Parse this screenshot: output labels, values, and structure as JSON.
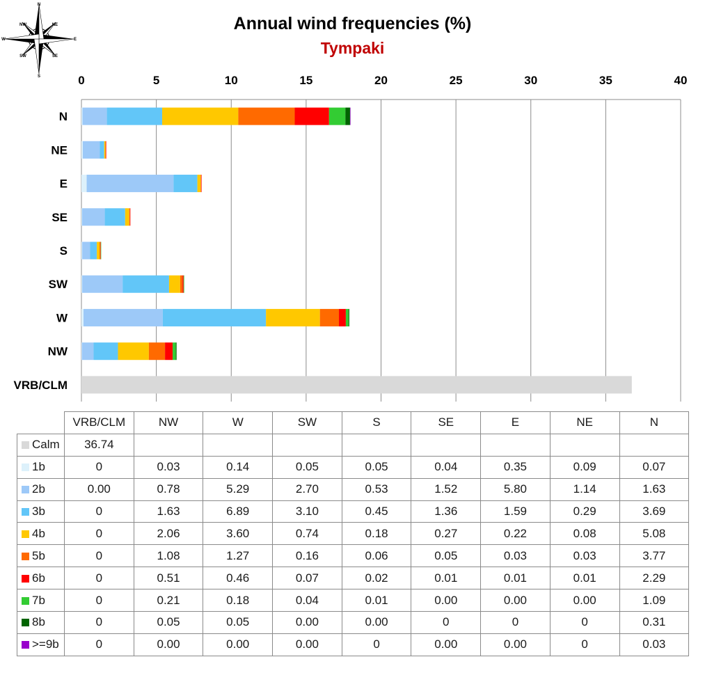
{
  "chart_data": {
    "type": "bar",
    "orientation": "horizontal",
    "stacked": true,
    "title": "Annual wind frequencies (%)",
    "subtitle": "Tympaki",
    "categories": [
      "N",
      "NE",
      "E",
      "SE",
      "S",
      "SW",
      "W",
      "NW",
      "VRB/CLM"
    ],
    "xlim": [
      0,
      40
    ],
    "x_ticks": [
      0,
      5,
      10,
      15,
      20,
      25,
      30,
      35,
      40
    ],
    "grid": "vertical",
    "legend": "table-below",
    "series": [
      {
        "name": "Calm",
        "color": "#d9d9d9",
        "values": [
          0,
          0,
          0,
          0,
          0,
          0,
          0,
          0,
          36.74
        ]
      },
      {
        "name": "1b",
        "color": "#ddf1fb",
        "values": [
          0.07,
          0.09,
          0.35,
          0.04,
          0.05,
          0.05,
          0.14,
          0.03,
          0
        ]
      },
      {
        "name": "2b",
        "color": "#9dc9f8",
        "values": [
          1.63,
          1.14,
          5.8,
          1.52,
          0.53,
          2.7,
          5.29,
          0.78,
          0
        ]
      },
      {
        "name": "3b",
        "color": "#62c6f8",
        "values": [
          3.69,
          0.29,
          1.59,
          1.36,
          0.45,
          3.1,
          6.89,
          1.63,
          0
        ]
      },
      {
        "name": "4b",
        "color": "#ffc800",
        "values": [
          5.08,
          0.08,
          0.22,
          0.27,
          0.18,
          0.74,
          3.6,
          2.06,
          0
        ]
      },
      {
        "name": "5b",
        "color": "#ff6a00",
        "values": [
          3.77,
          0.03,
          0.03,
          0.05,
          0.06,
          0.16,
          1.27,
          1.08,
          0
        ]
      },
      {
        "name": "6b",
        "color": "#ff0000",
        "values": [
          2.29,
          0.01,
          0.01,
          0.01,
          0.02,
          0.07,
          0.46,
          0.51,
          0
        ]
      },
      {
        "name": "7b",
        "color": "#33cc33",
        "values": [
          1.09,
          0.0,
          0.0,
          0.0,
          0.01,
          0.04,
          0.18,
          0.21,
          0
        ]
      },
      {
        "name": "8b",
        "color": "#006400",
        "values": [
          0.31,
          0,
          0,
          0.0,
          0.0,
          0.0,
          0.05,
          0.05,
          0
        ]
      },
      {
        "name": ">=9b",
        "color": "#9900cc",
        "values": [
          0.03,
          0,
          0.0,
          0.0,
          0,
          0.0,
          0.0,
          0.0,
          0
        ]
      }
    ]
  },
  "compass_labels": [
    "N",
    "NE",
    "E",
    "SE",
    "S",
    "SW",
    "W",
    "NW"
  ],
  "table": {
    "header": [
      "VRB/CLM",
      "NW",
      "W",
      "SW",
      "S",
      "SE",
      "E",
      "NE",
      "N"
    ],
    "rows": [
      {
        "label": "Calm",
        "color": "#d9d9d9",
        "cells": [
          "36.74",
          "",
          "",
          "",
          "",
          "",
          "",
          "",
          ""
        ]
      },
      {
        "label": "1b",
        "color": "#ddf1fb",
        "cells": [
          "0",
          "0.03",
          "0.14",
          "0.05",
          "0.05",
          "0.04",
          "0.35",
          "0.09",
          "0.07"
        ]
      },
      {
        "label": "2b",
        "color": "#9dc9f8",
        "cells": [
          "0.00",
          "0.78",
          "5.29",
          "2.70",
          "0.53",
          "1.52",
          "5.80",
          "1.14",
          "1.63"
        ]
      },
      {
        "label": "3b",
        "color": "#62c6f8",
        "cells": [
          "0",
          "1.63",
          "6.89",
          "3.10",
          "0.45",
          "1.36",
          "1.59",
          "0.29",
          "3.69"
        ]
      },
      {
        "label": "4b",
        "color": "#ffc800",
        "cells": [
          "0",
          "2.06",
          "3.60",
          "0.74",
          "0.18",
          "0.27",
          "0.22",
          "0.08",
          "5.08"
        ]
      },
      {
        "label": "5b",
        "color": "#ff6a00",
        "cells": [
          "0",
          "1.08",
          "1.27",
          "0.16",
          "0.06",
          "0.05",
          "0.03",
          "0.03",
          "3.77"
        ]
      },
      {
        "label": "6b",
        "color": "#ff0000",
        "cells": [
          "0",
          "0.51",
          "0.46",
          "0.07",
          "0.02",
          "0.01",
          "0.01",
          "0.01",
          "2.29"
        ]
      },
      {
        "label": "7b",
        "color": "#33cc33",
        "cells": [
          "0",
          "0.21",
          "0.18",
          "0.04",
          "0.01",
          "0.00",
          "0.00",
          "0.00",
          "1.09"
        ]
      },
      {
        "label": "8b",
        "color": "#006400",
        "cells": [
          "0",
          "0.05",
          "0.05",
          "0.00",
          "0.00",
          "0",
          "0",
          "0",
          "0.31"
        ]
      },
      {
        "label": ">=9b",
        "color": "#9900cc",
        "cells": [
          "0",
          "0.00",
          "0.00",
          "0.00",
          "0",
          "0.00",
          "0.00",
          "0",
          "0.03"
        ]
      }
    ]
  }
}
